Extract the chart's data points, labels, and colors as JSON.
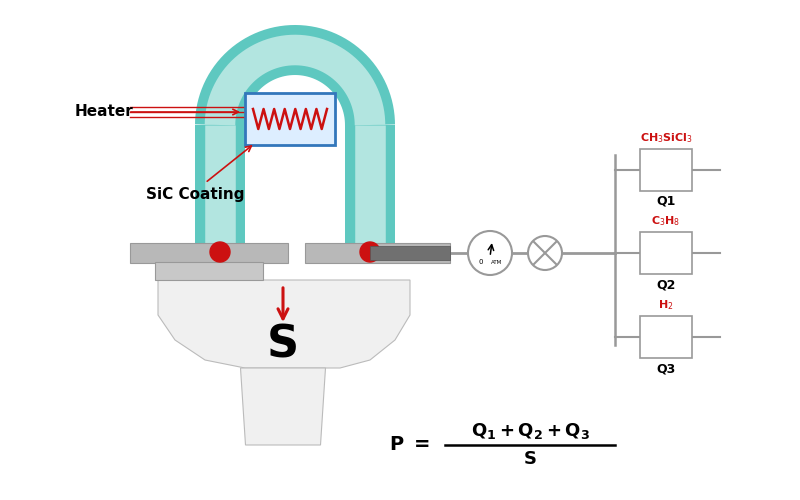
{
  "bg_color": "#ffffff",
  "teal_outer": "#5ec8c0",
  "teal_inner": "#b2e5e0",
  "gray_flange": "#b0b0b0",
  "gray_tube": "#808080",
  "gray_line": "#999999",
  "red_color": "#cc1111",
  "blue_border": "#3377bb",
  "blue_fill": "#ddeeff",
  "heater_label": "Heater",
  "coating_label": "SiC Coating",
  "S_label": "S",
  "gas1": "CH$_3$SiCl$_3$",
  "gas2": "C$_3$H$_8$",
  "gas3": "H$_2$",
  "q1": "Q1",
  "q2": "Q2",
  "q3": "Q3",
  "tube_lw": 36,
  "tube_inner_lw": 22
}
